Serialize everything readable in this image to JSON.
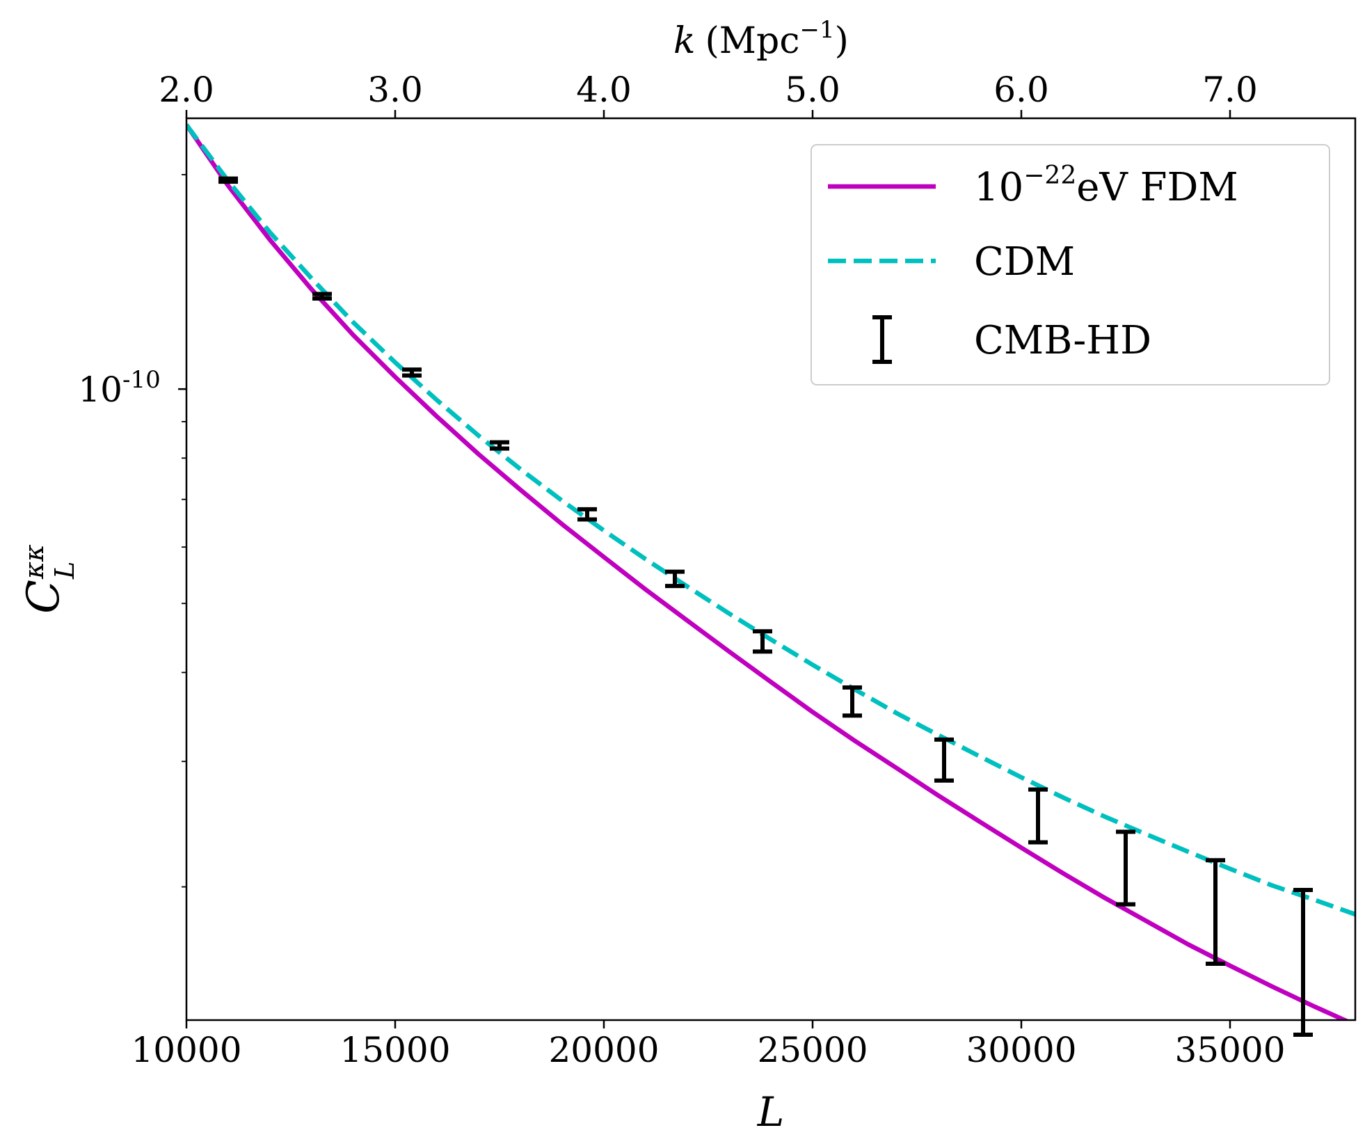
{
  "chart_data": {
    "type": "line",
    "title": "",
    "xlabel": "L",
    "ylabel_base": "C",
    "ylabel_sup": "κκ",
    "ylabel_sub": "L",
    "top_xlabel_var": "k",
    "top_xlabel_unit": "(Mpc",
    "top_xlabel_exp": "−1",
    "top_xlabel_close": ")",
    "xlim": [
      10000,
      38000
    ],
    "ylim": [
      1.3e-11,
      2.4e-10
    ],
    "yscale": "log",
    "x_ticks": [
      10000,
      15000,
      20000,
      25000,
      30000,
      35000
    ],
    "x_tick_labels": [
      "10000",
      "15000",
      "20000",
      "25000",
      "30000",
      "35000"
    ],
    "y_major_ticks": [
      1e-10
    ],
    "y_major_tick_labels": [
      "10"
    ],
    "y_major_tick_exp": "-10",
    "y_minor_ticks": [
      2e-11,
      3e-11,
      4e-11,
      5e-11,
      6e-11,
      7e-11,
      8e-11,
      9e-11,
      2e-10
    ],
    "top_x_ticks": [
      2.0,
      3.0,
      4.0,
      5.0,
      6.0,
      7.0
    ],
    "top_x_tick_labels": [
      "2.0",
      "3.0",
      "4.0",
      "5.0",
      "6.0",
      "7.0"
    ],
    "k_per_L": 0.0002,
    "series": [
      {
        "name": "FDM",
        "legend_base": "10",
        "legend_exp": "−22",
        "legend_rest": "eV FDM",
        "color": "#bf00bf",
        "style": "solid",
        "x": [
          10000,
          11000,
          12000,
          13000,
          14000,
          15000,
          16000,
          17000,
          18000,
          19000,
          20000,
          21000,
          22000,
          23000,
          24000,
          25000,
          26000,
          27000,
          28000,
          29000,
          30000,
          31000,
          32000,
          33000,
          34000,
          35000,
          36000,
          37000,
          38000
        ],
        "y": [
          2.35e-10,
          1.93e-10,
          1.62e-10,
          1.38e-10,
          1.19e-10,
          1.04e-10,
          9.15e-11,
          8.1e-11,
          7.22e-11,
          6.46e-11,
          5.81e-11,
          5.23e-11,
          4.73e-11,
          4.28e-11,
          3.88e-11,
          3.52e-11,
          3.21e-11,
          2.94e-11,
          2.69e-11,
          2.47e-11,
          2.27e-11,
          2.09e-11,
          1.93e-11,
          1.79e-11,
          1.66e-11,
          1.55e-11,
          1.45e-11,
          1.36e-11,
          1.28e-11
        ]
      },
      {
        "name": "CDM",
        "legend_label": "CDM",
        "color": "#00bfbf",
        "style": "dashed",
        "x": [
          10000,
          11000,
          12000,
          13000,
          14000,
          15000,
          16000,
          17000,
          18000,
          19000,
          20000,
          21000,
          22000,
          23000,
          24000,
          25000,
          26000,
          27000,
          28000,
          29000,
          30000,
          31000,
          32000,
          33000,
          34000,
          35000,
          36000,
          37000,
          38000
        ],
        "y": [
          2.35e-10,
          1.96e-10,
          1.66e-10,
          1.43e-10,
          1.24e-10,
          1.09e-10,
          9.65e-11,
          8.6e-11,
          7.72e-11,
          6.97e-11,
          6.33e-11,
          5.77e-11,
          5.28e-11,
          4.84e-11,
          4.45e-11,
          4.1e-11,
          3.79e-11,
          3.51e-11,
          3.27e-11,
          3.05e-11,
          2.85e-11,
          2.67e-11,
          2.51e-11,
          2.37e-11,
          2.24e-11,
          2.12e-11,
          2.01e-11,
          1.92e-11,
          1.83e-11
        ]
      }
    ],
    "errorbars": {
      "name": "CMB-HD",
      "legend_label": "CMB-HD",
      "color": "#000000",
      "points": [
        {
          "x": 11000,
          "y_low": 1.955e-10,
          "y_high": 1.975e-10
        },
        {
          "x": 13250,
          "y_low": 1.34e-10,
          "y_high": 1.36e-10
        },
        {
          "x": 15400,
          "y_low": 1.045e-10,
          "y_high": 1.065e-10
        },
        {
          "x": 17500,
          "y_low": 8.25e-11,
          "y_high": 8.42e-11
        },
        {
          "x": 19600,
          "y_low": 6.56e-11,
          "y_high": 6.78e-11
        },
        {
          "x": 21700,
          "y_low": 5.29e-11,
          "y_high": 5.54e-11
        },
        {
          "x": 23800,
          "y_low": 4.28e-11,
          "y_high": 4.57e-11
        },
        {
          "x": 25950,
          "y_low": 3.48e-11,
          "y_high": 3.81e-11
        },
        {
          "x": 28150,
          "y_low": 2.82e-11,
          "y_high": 3.22e-11
        },
        {
          "x": 30400,
          "y_low": 2.31e-11,
          "y_high": 2.74e-11
        },
        {
          "x": 32500,
          "y_low": 1.89e-11,
          "y_high": 2.39e-11
        },
        {
          "x": 34650,
          "y_low": 1.56e-11,
          "y_high": 2.18e-11
        },
        {
          "x": 36750,
          "y_low": 1.24e-11,
          "y_high": 1.98e-11
        }
      ]
    },
    "legend_position": "upper right"
  }
}
